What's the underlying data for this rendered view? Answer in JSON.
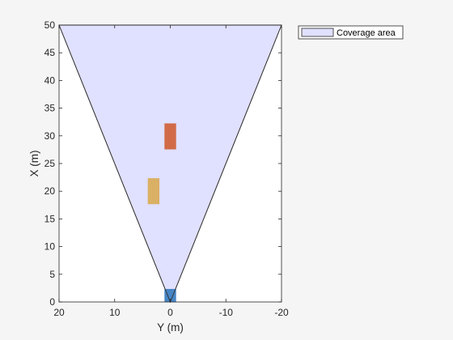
{
  "chart_data": {
    "type": "area",
    "xlabel": "Y (m)",
    "ylabel": "X (m)",
    "xlim": [
      20,
      -20
    ],
    "ylim": [
      0,
      50
    ],
    "x_reversed": true,
    "x_ticks": [
      20,
      10,
      0,
      -10,
      -20
    ],
    "y_ticks": [
      0,
      5,
      10,
      15,
      20,
      25,
      30,
      35,
      40,
      45,
      50
    ],
    "grid": false,
    "legend": {
      "position": "outside-top-right",
      "entries": [
        "Coverage area"
      ]
    },
    "coverage_area": {
      "name": "Coverage area",
      "color": "#e0e0ff",
      "edge_color": "#333333",
      "vertices": [
        [
          0,
          0
        ],
        [
          20,
          50
        ],
        [
          -20,
          50
        ]
      ]
    },
    "objects": [
      {
        "id": "ego-vehicle",
        "color": "#3d7fc2",
        "y_min": -1,
        "y_max": 1,
        "x_min": 0,
        "x_max": 2.3
      },
      {
        "id": "red-vehicle",
        "color": "#d0633d",
        "y_min": -1,
        "y_max": 1,
        "x_min": 27.6,
        "x_max": 32.2
      },
      {
        "id": "yellow-vehicle",
        "color": "#d9ad5c",
        "y_min": 2,
        "y_max": 4,
        "x_min": 17.7,
        "x_max": 22.3
      }
    ]
  }
}
